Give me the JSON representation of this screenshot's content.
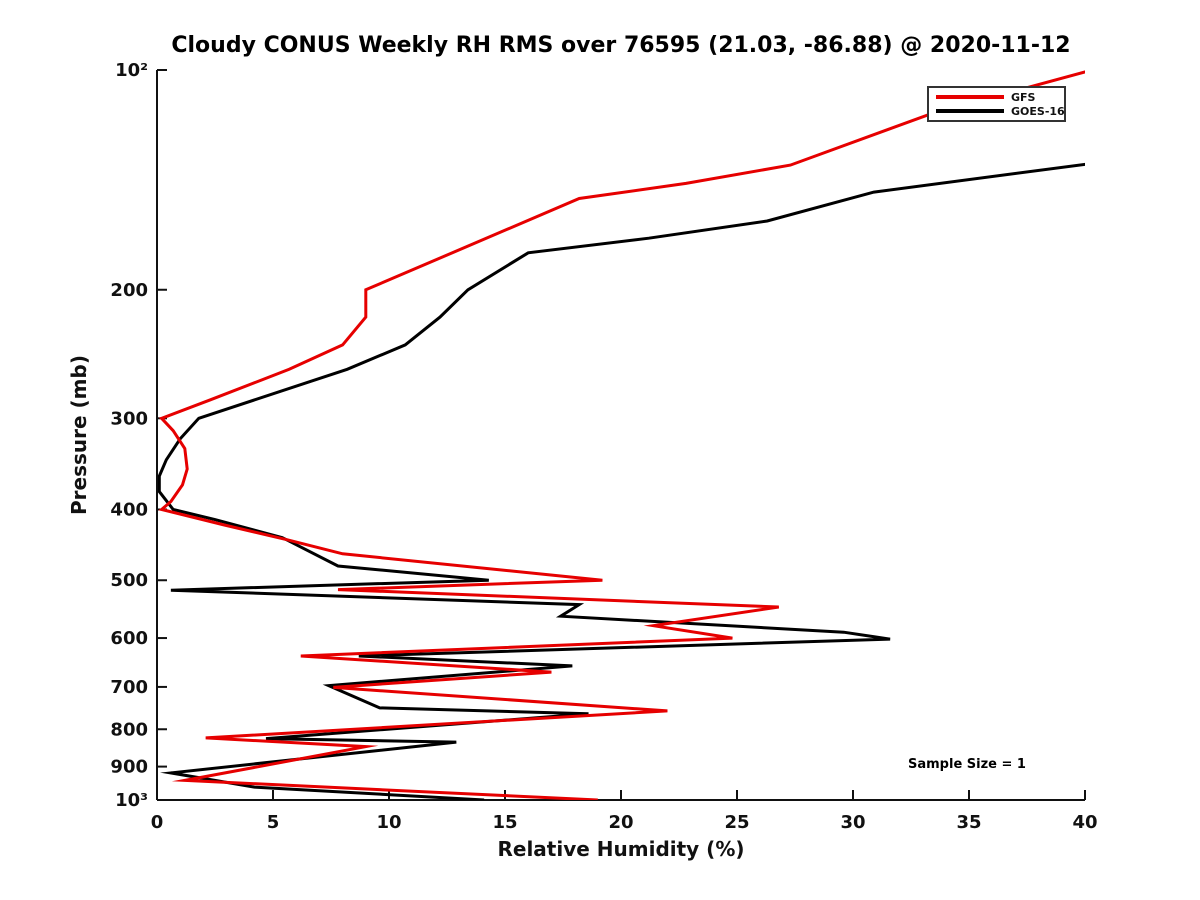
{
  "title": "Cloudy CONUS Weekly RH RMS over 76595 (21.03, -86.88) @ 2020-11-12",
  "annotation": "Sample Size = 1",
  "axes": {
    "xlabel": "Relative Humidity (%)",
    "ylabel": "Pressure (mb)",
    "x_ticks": [
      0,
      5,
      10,
      15,
      20,
      25,
      30,
      35,
      40
    ],
    "y_ticks": [
      {
        "p": 100,
        "label": "10²"
      },
      {
        "p": 200,
        "label": "200"
      },
      {
        "p": 300,
        "label": "300"
      },
      {
        "p": 400,
        "label": "400"
      },
      {
        "p": 500,
        "label": "500"
      },
      {
        "p": 600,
        "label": "600"
      },
      {
        "p": 700,
        "label": "700"
      },
      {
        "p": 800,
        "label": "800"
      },
      {
        "p": 900,
        "label": "900"
      },
      {
        "p": 1000,
        "label": "10³"
      }
    ]
  },
  "chart_data": {
    "type": "line",
    "title": "Cloudy CONUS Weekly RH RMS over 76595 (21.03, -86.88) @ 2020-11-12",
    "xlabel": "Relative Humidity (%)",
    "ylabel": "Pressure (mb)",
    "annotation": "Sample Size = 1",
    "xlim": [
      0,
      40
    ],
    "ylim_mb": [
      100,
      1000
    ],
    "y_scale": "log10, inverted (100 mb at top, 1000 mb at bottom)",
    "legend_position": "upper right",
    "grid": false,
    "point_format": [
      "pressure_mb",
      "rh_rms_percent"
    ],
    "series": [
      {
        "name": "GFS",
        "color": "#e60000",
        "points": [
          [
            100,
            40.3
          ],
          [
            115,
            33.3
          ],
          [
            135,
            27.3
          ],
          [
            143,
            22.8
          ],
          [
            150,
            18.2
          ],
          [
            200,
            9.0
          ],
          [
            218,
            9.0
          ],
          [
            238,
            8.0
          ],
          [
            257,
            5.7
          ],
          [
            283,
            2.3
          ],
          [
            300,
            0.2
          ],
          [
            312,
            0.7
          ],
          [
            330,
            1.2
          ],
          [
            352,
            1.3
          ],
          [
            370,
            1.1
          ],
          [
            390,
            0.6
          ],
          [
            400,
            0.2
          ],
          [
            420,
            2.9
          ],
          [
            440,
            5.6
          ],
          [
            460,
            8.0
          ],
          [
            500,
            19.2
          ],
          [
            515,
            7.8
          ],
          [
            544,
            26.8
          ],
          [
            577,
            21.4
          ],
          [
            600,
            24.8
          ],
          [
            635,
            6.2
          ],
          [
            668,
            17.0
          ],
          [
            701,
            7.6
          ],
          [
            755,
            22.0
          ],
          [
            822,
            2.1
          ],
          [
            845,
            9.0
          ],
          [
            940,
            1.2
          ],
          [
            1000,
            19.0
          ]
        ]
      },
      {
        "name": "GOES-16",
        "color": "#000000",
        "points": [
          [
            134,
            40.5
          ],
          [
            147,
            30.9
          ],
          [
            161,
            26.3
          ],
          [
            170,
            21.2
          ],
          [
            178,
            16.0
          ],
          [
            200,
            13.4
          ],
          [
            218,
            12.2
          ],
          [
            238,
            10.7
          ],
          [
            257,
            8.2
          ],
          [
            300,
            1.8
          ],
          [
            320,
            1.0
          ],
          [
            342,
            0.4
          ],
          [
            360,
            0.1
          ],
          [
            378,
            0.1
          ],
          [
            400,
            0.7
          ],
          [
            413,
            2.5
          ],
          [
            437,
            5.4
          ],
          [
            478,
            7.8
          ],
          [
            500,
            14.3
          ],
          [
            516,
            0.6
          ],
          [
            540,
            18.2
          ],
          [
            560,
            17.4
          ],
          [
            589,
            29.6
          ],
          [
            602,
            31.6
          ],
          [
            635,
            8.7
          ],
          [
            655,
            17.9
          ],
          [
            697,
            7.4
          ],
          [
            748,
            9.6
          ],
          [
            762,
            18.6
          ],
          [
            824,
            4.7
          ],
          [
            833,
            12.9
          ],
          [
            918,
            0.6
          ],
          [
            960,
            4.2
          ],
          [
            1000,
            14.1
          ]
        ]
      }
    ]
  }
}
